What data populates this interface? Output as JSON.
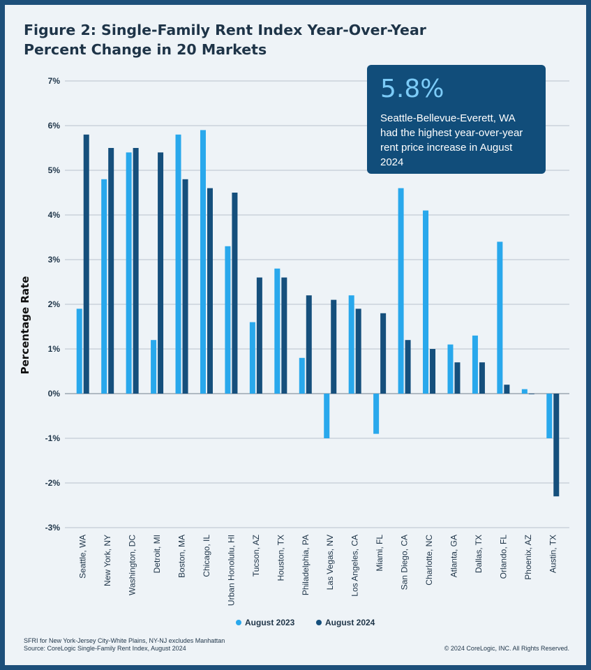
{
  "title": "Figure 2: Single-Family Rent Index Year-Over-Year Percent Change in 20 Markets",
  "callout": {
    "value": "5.8%",
    "text": "Seattle-Bellevue-Everett, WA had the highest year-over-year rent price increase in August 2024"
  },
  "footnote_1": "SFRI for New York-Jersey City-White Plains, NY-NJ excludes Manhattan",
  "footnote_2": "Source: CoreLogic Single-Family Rent Index, August 2024",
  "copyright": "© 2024 CoreLogic, INC. All Rights Reserved.",
  "colors": {
    "aug2023": "#29a8ec",
    "aug2024": "#154f7c"
  },
  "chart_data": {
    "type": "bar",
    "title": "Figure 2: Single-Family Rent Index Year-Over-Year Percent Change in 20 Markets",
    "xlabel": "",
    "ylabel": "Percentage Rate",
    "ylim": [
      -3,
      7
    ],
    "yticks": [
      7,
      6,
      5,
      4,
      3,
      2,
      1,
      0,
      -1,
      -2,
      -3
    ],
    "ytick_labels": [
      "7%",
      "6%",
      "5%",
      "4%",
      "3%",
      "2%",
      "1%",
      "0%",
      "-1%",
      "-2%",
      "-3%"
    ],
    "categories": [
      "Seattle, WA",
      "New York, NY",
      "Washington, DC",
      "Detroit, MI",
      "Boston, MA",
      "Chicago, IL",
      "Urban Honolulu, HI",
      "Tucson, AZ",
      "Houston, TX",
      "Philadelphia, PA",
      "Las Vegas, NV",
      "Los Angeles, CA",
      "Miami, FL",
      "San Diego, CA",
      "Charlotte, NC",
      "Atlanta, GA",
      "Dallas, TX",
      "Orlando, FL",
      "Phoenix, AZ",
      "Austin, TX"
    ],
    "series": [
      {
        "name": "August 2023",
        "values": [
          1.9,
          4.8,
          5.4,
          1.2,
          5.8,
          5.9,
          3.3,
          1.6,
          2.8,
          0.8,
          -1.0,
          2.2,
          -0.9,
          4.6,
          4.1,
          1.1,
          1.3,
          3.4,
          0.1,
          -1.0
        ]
      },
      {
        "name": "August 2024",
        "values": [
          5.8,
          5.5,
          5.5,
          5.4,
          4.8,
          4.6,
          4.5,
          2.6,
          2.6,
          2.2,
          2.1,
          1.9,
          1.8,
          1.2,
          1.0,
          0.7,
          0.7,
          0.2,
          0.0,
          -2.3
        ]
      }
    ],
    "legend": "bottom-center",
    "grid": true
  }
}
